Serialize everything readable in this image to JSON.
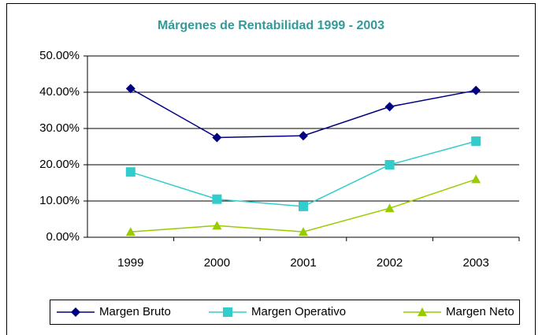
{
  "chart_data": {
    "type": "line",
    "title": "Márgenes de Rentabilidad 1999 - 2003",
    "categories": [
      "1999",
      "2000",
      "2001",
      "2002",
      "2003"
    ],
    "series": [
      {
        "name": "Margen Bruto",
        "color": "#000080",
        "marker": "diamond",
        "values": [
          41,
          27.5,
          28,
          36,
          40.5
        ]
      },
      {
        "name": "Margen Operativo",
        "color": "#33cccc",
        "marker": "square",
        "values": [
          18,
          10.5,
          8.5,
          20,
          26.5
        ]
      },
      {
        "name": "Margen Neto",
        "color": "#99cc00",
        "marker": "triangle",
        "values": [
          1.5,
          3.2,
          1.5,
          8,
          16
        ]
      }
    ],
    "ylim": [
      0,
      50
    ],
    "yticks": [
      {
        "value": 0,
        "label": "0.00%"
      },
      {
        "value": 10,
        "label": "10.00%"
      },
      {
        "value": 20,
        "label": "20.00%"
      },
      {
        "value": 30,
        "label": "30.00%"
      },
      {
        "value": 40,
        "label": "40.00%"
      },
      {
        "value": 50,
        "label": "50.00%"
      }
    ],
    "grid": true,
    "legend": "bottom",
    "title_color": "#339999"
  }
}
